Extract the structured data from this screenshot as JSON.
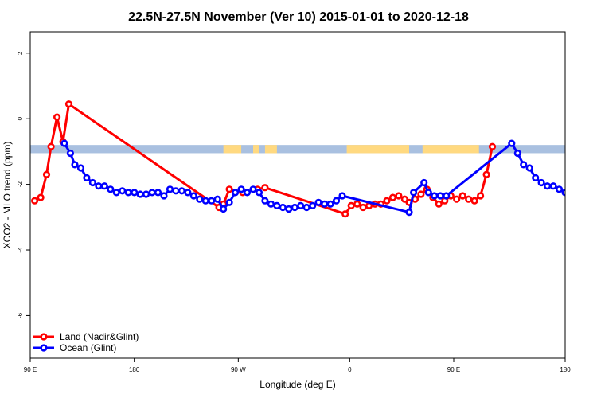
{
  "chart_data": {
    "type": "line",
    "title": "22.5N-27.5N November (Ver 10)   2015-01-01 to 2020-12-18",
    "xlabel": "Longitude (deg E)",
    "ylabel": "XCO2 - MLO trend (ppm)",
    "xlim": [
      90,
      450
    ],
    "ylim": [
      -7.3,
      2.65
    ],
    "x_ticks": [
      {
        "value": 90,
        "label": "90 E"
      },
      {
        "value": 160,
        "label": "180"
      },
      {
        "value": 230,
        "label": "90 W"
      },
      {
        "value": 305,
        "label": "0"
      },
      {
        "value": 375,
        "label": "90 E"
      },
      {
        "value": 450,
        "label": "180"
      }
    ],
    "y_ticks": [
      {
        "value": 2,
        "label": "2"
      },
      {
        "value": 0,
        "label": "0"
      },
      {
        "value": -2,
        "label": "-2"
      },
      {
        "value": -4,
        "label": "-4"
      },
      {
        "value": -6,
        "label": "-6"
      }
    ],
    "legend_position": "bottom-left",
    "land_band": {
      "y_range": [
        -1.05,
        -0.8
      ],
      "ocean_color": "#A9C0E0",
      "land_color": "#FFD980",
      "land_segments": [
        [
          220,
          232
        ],
        [
          240,
          244
        ],
        [
          248,
          256
        ],
        [
          303,
          345
        ],
        [
          354,
          392
        ]
      ]
    },
    "series": [
      {
        "name": "Land (Nadir&Glint)",
        "color": "#FF0000",
        "x": [
          93,
          97,
          101,
          104,
          108,
          112,
          116,
          217,
          220,
          224,
          233,
          243,
          248,
          302,
          306,
          310,
          314,
          318,
          322,
          326,
          330,
          334,
          338,
          342,
          345,
          349,
          353,
          357,
          361,
          365,
          369,
          373,
          377,
          381,
          385,
          389,
          393,
          397,
          401
        ],
        "y": [
          -2.5,
          -2.4,
          -1.7,
          -0.85,
          0.05,
          -0.7,
          0.45,
          -2.7,
          -2.6,
          -2.15,
          -2.25,
          -2.15,
          -2.1,
          -2.9,
          -2.65,
          -2.6,
          -2.7,
          -2.65,
          -2.6,
          -2.6,
          -2.5,
          -2.4,
          -2.35,
          -2.45,
          -2.55,
          -2.45,
          -2.3,
          -2.15,
          -2.4,
          -2.6,
          -2.5,
          -2.35,
          -2.45,
          -2.35,
          -2.45,
          -2.5,
          -2.35,
          -1.7,
          -0.85
        ]
      },
      {
        "name": "Ocean (Glint)",
        "color": "#0000FF",
        "x": [
          113,
          117,
          120,
          124,
          128,
          132,
          136,
          140,
          144,
          148,
          152,
          156,
          160,
          164,
          168,
          172,
          176,
          180,
          184,
          188,
          192,
          196,
          200,
          204,
          208,
          212,
          216,
          220,
          224,
          228,
          232,
          236,
          240,
          244,
          248,
          252,
          256,
          260,
          264,
          268,
          272,
          276,
          280,
          284,
          288,
          292,
          296,
          300,
          345,
          348,
          355,
          358,
          362,
          366,
          370,
          414,
          418,
          422,
          426,
          430,
          434,
          438,
          442,
          446,
          450,
          454,
          458,
          462
        ],
        "y": [
          -0.75,
          -1.05,
          -1.4,
          -1.5,
          -1.8,
          -1.95,
          -2.05,
          -2.05,
          -2.15,
          -2.25,
          -2.2,
          -2.25,
          -2.25,
          -2.3,
          -2.3,
          -2.25,
          -2.25,
          -2.35,
          -2.15,
          -2.2,
          -2.2,
          -2.25,
          -2.35,
          -2.45,
          -2.5,
          -2.5,
          -2.45,
          -2.75,
          -2.55,
          -2.25,
          -2.15,
          -2.25,
          -2.15,
          -2.25,
          -2.5,
          -2.6,
          -2.65,
          -2.7,
          -2.75,
          -2.7,
          -2.65,
          -2.7,
          -2.65,
          -2.55,
          -2.6,
          -2.6,
          -2.5,
          -2.35,
          -2.85,
          -2.25,
          -1.95,
          -2.25,
          -2.35,
          -2.35,
          -2.35,
          -0.75,
          -1.05,
          -1.4,
          -1.5,
          -1.8,
          -1.95,
          -2.05,
          -2.05,
          -2.15,
          -2.25,
          -2.2,
          -2.25,
          -2.25
        ]
      }
    ]
  }
}
